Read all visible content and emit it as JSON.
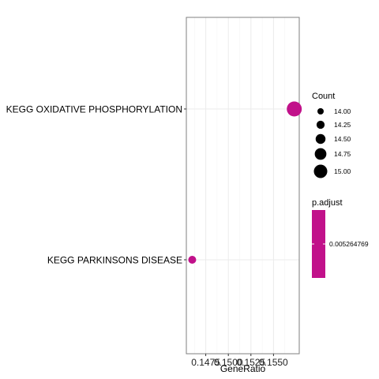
{
  "chart_data": {
    "type": "scatter",
    "title": "",
    "xlabel": "GeneRatio",
    "ylabel": "",
    "xlim": [
      0.14535,
      0.15785
    ],
    "x_ticks": [
      0.1475,
      0.15,
      0.1525,
      0.155
    ],
    "x_tick_labels": [
      "0.1475",
      "0.1500",
      "0.1525",
      "0.1550"
    ],
    "categories": [
      "KEGG OXIDATIVE PHOSPHORYLATION",
      "KEGG PARKINSONS DISEASE"
    ],
    "points": [
      {
        "category": "KEGG OXIDATIVE PHOSPHORYLATION",
        "gene_ratio": 0.1573,
        "count": 15,
        "p_adjust": 0.005264769
      },
      {
        "category": "KEGG PARKINSONS DISEASE",
        "gene_ratio": 0.146,
        "count": 14,
        "p_adjust": 0.005264769
      }
    ],
    "grid": true,
    "legend_placement": "right",
    "size_legend": {
      "title": "Count",
      "breaks": [
        14.0,
        14.25,
        14.5,
        14.75,
        15.0
      ],
      "labels": [
        "14.00",
        "14.25",
        "14.50",
        "14.75",
        "15.00"
      ]
    },
    "color_legend": {
      "title": "p.adjust",
      "labels": [
        "0.005264769"
      ],
      "color": "#c1118a"
    },
    "colors": {
      "point": "#c1118a",
      "grid": "#ebebeb",
      "panel_border": "#7f7f7f"
    }
  }
}
